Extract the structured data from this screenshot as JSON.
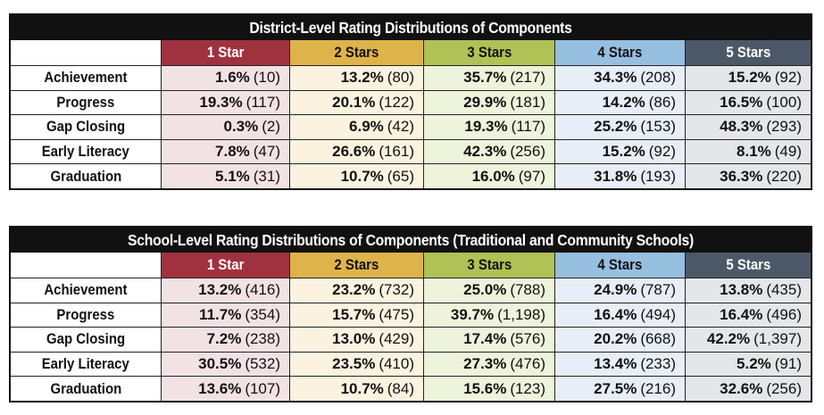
{
  "colors": {
    "star1": "#a0323f",
    "star2": "#deb34a",
    "star3": "#b0c156",
    "star4": "#97bfe0",
    "star5": "#4c5867"
  },
  "district": {
    "title": "District-Level Rating Distributions of Components",
    "headers": [
      "1 Star",
      "2 Stars",
      "3 Stars",
      "4 Stars",
      "5 Stars"
    ],
    "rows": [
      {
        "label": "Achievement",
        "cells": [
          {
            "pct": "1.6%",
            "n": "(10)"
          },
          {
            "pct": "13.2%",
            "n": "(80)"
          },
          {
            "pct": "35.7%",
            "n": "(217)"
          },
          {
            "pct": "34.3%",
            "n": "(208)"
          },
          {
            "pct": "15.2%",
            "n": "(92)"
          }
        ]
      },
      {
        "label": "Progress",
        "cells": [
          {
            "pct": "19.3%",
            "n": "(117)"
          },
          {
            "pct": "20.1%",
            "n": "(122)"
          },
          {
            "pct": "29.9%",
            "n": "(181)"
          },
          {
            "pct": "14.2%",
            "n": "(86)"
          },
          {
            "pct": "16.5%",
            "n": "(100)"
          }
        ]
      },
      {
        "label": "Gap Closing",
        "cells": [
          {
            "pct": "0.3%",
            "n": "(2)"
          },
          {
            "pct": "6.9%",
            "n": "(42)"
          },
          {
            "pct": "19.3%",
            "n": "(117)"
          },
          {
            "pct": "25.2%",
            "n": "(153)"
          },
          {
            "pct": "48.3%",
            "n": "(293)"
          }
        ]
      },
      {
        "label": "Early Literacy",
        "cells": [
          {
            "pct": "7.8%",
            "n": "(47)"
          },
          {
            "pct": "26.6%",
            "n": "(161)"
          },
          {
            "pct": "42.3%",
            "n": "(256)"
          },
          {
            "pct": "15.2%",
            "n": "(92)"
          },
          {
            "pct": "8.1%",
            "n": "(49)"
          }
        ]
      },
      {
        "label": "Graduation",
        "cells": [
          {
            "pct": "5.1%",
            "n": "(31)"
          },
          {
            "pct": "10.7%",
            "n": "(65)"
          },
          {
            "pct": "16.0%",
            "n": "(97)"
          },
          {
            "pct": "31.8%",
            "n": "(193)"
          },
          {
            "pct": "36.3%",
            "n": "(220)"
          }
        ]
      }
    ]
  },
  "school": {
    "title": "School-Level Rating Distributions of Components (Traditional and Community Schools)",
    "headers": [
      "1 Star",
      "2 Stars",
      "3 Stars",
      "4 Stars",
      "5 Stars"
    ],
    "rows": [
      {
        "label": "Achievement",
        "cells": [
          {
            "pct": "13.2%",
            "n": "(416)"
          },
          {
            "pct": "23.2%",
            "n": "(732)"
          },
          {
            "pct": "25.0%",
            "n": "(788)"
          },
          {
            "pct": "24.9%",
            "n": "(787)"
          },
          {
            "pct": "13.8%",
            "n": "(435)"
          }
        ]
      },
      {
        "label": "Progress",
        "cells": [
          {
            "pct": "11.7%",
            "n": "(354)"
          },
          {
            "pct": "15.7%",
            "n": "(475)"
          },
          {
            "pct": "39.7%",
            "n": "(1,198)"
          },
          {
            "pct": "16.4%",
            "n": "(494)"
          },
          {
            "pct": "16.4%",
            "n": "(496)"
          }
        ]
      },
      {
        "label": "Gap Closing",
        "cells": [
          {
            "pct": "7.2%",
            "n": "(238)"
          },
          {
            "pct": "13.0%",
            "n": "(429)"
          },
          {
            "pct": "17.4%",
            "n": "(576)"
          },
          {
            "pct": "20.2%",
            "n": "(668)"
          },
          {
            "pct": "42.2%",
            "n": "(1,397)"
          }
        ]
      },
      {
        "label": "Early Literacy",
        "cells": [
          {
            "pct": "30.5%",
            "n": "(532)"
          },
          {
            "pct": "23.5%",
            "n": "(410)"
          },
          {
            "pct": "27.3%",
            "n": "(476)"
          },
          {
            "pct": "13.4%",
            "n": "(233)"
          },
          {
            "pct": "5.2%",
            "n": "(91)"
          }
        ]
      },
      {
        "label": "Graduation",
        "cells": [
          {
            "pct": "13.6%",
            "n": "(107)"
          },
          {
            "pct": "10.7%",
            "n": "(84)"
          },
          {
            "pct": "15.6%",
            "n": "(123)"
          },
          {
            "pct": "27.5%",
            "n": "(216)"
          },
          {
            "pct": "32.6%",
            "n": "(256)"
          }
        ]
      }
    ]
  }
}
